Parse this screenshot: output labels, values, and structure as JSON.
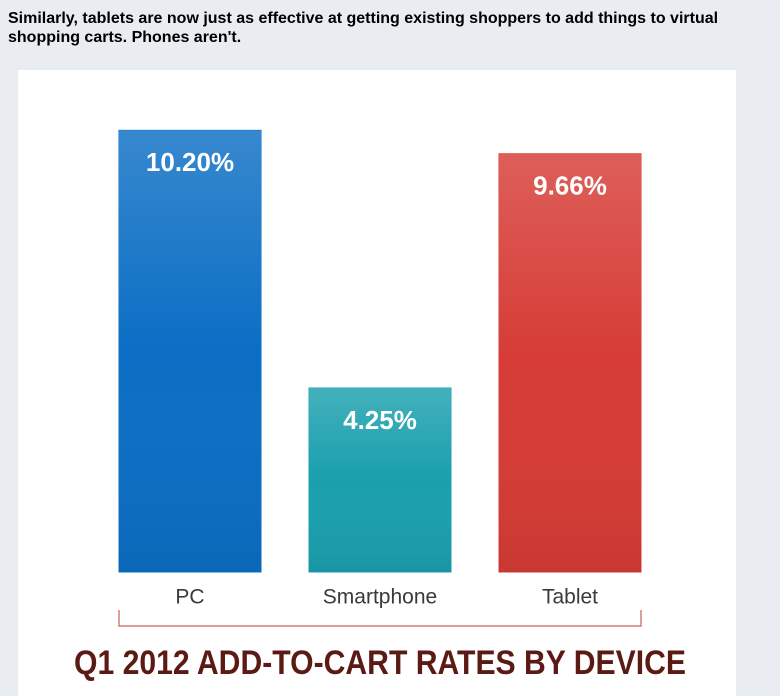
{
  "header": {
    "text": "Similarly, tablets are now just as effective at getting existing shoppers to add things to virtual shopping carts. Phones aren't."
  },
  "chart_data": {
    "type": "bar",
    "title": "Q1 2012 ADD-TO-CART RATES BY DEVICE",
    "categories": [
      "PC",
      "Smartphone",
      "Tablet"
    ],
    "values": [
      10.2,
      4.25,
      9.66
    ],
    "value_labels": [
      "10.20%",
      "4.25%",
      "9.66%"
    ],
    "colors": [
      "#0b6ec4",
      "#1a9fad",
      "#d63b35"
    ]
  }
}
